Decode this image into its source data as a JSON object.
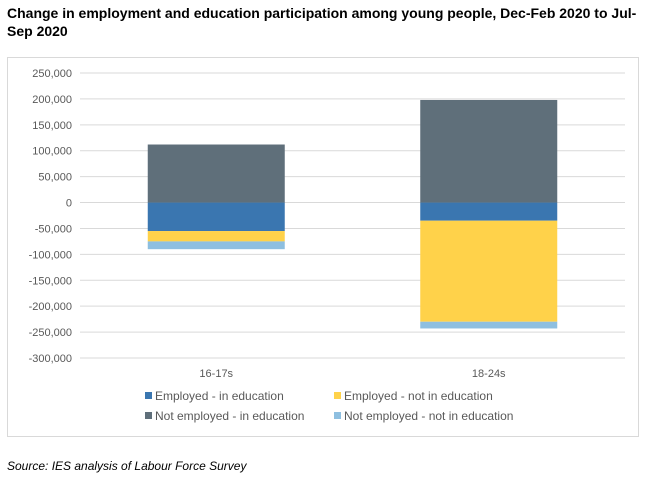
{
  "title": "Change in employment and education participation among young people, Dec-Feb 2020 to Jul-Sep 2020",
  "source": "Source: IES analysis of Labour Force Survey",
  "chart_data": {
    "type": "bar",
    "stacked": true,
    "title": "Change in employment and education participation among young people, Dec-Feb 2020 to Jul-Sep 2020",
    "categories": [
      "16-17s",
      "18-24s"
    ],
    "ylim": [
      -300000,
      250000
    ],
    "yticks": [
      250000,
      200000,
      150000,
      100000,
      50000,
      0,
      -50000,
      -100000,
      -150000,
      -200000,
      -250000,
      -300000
    ],
    "ytick_labels": [
      "250,000",
      "200,000",
      "150,000",
      "100,000",
      "50,000",
      "0",
      "-50,000",
      "-100,000",
      "-150,000",
      "-200,000",
      "-250,000",
      "-300,000"
    ],
    "grid": true,
    "legend_position": "bottom",
    "series": [
      {
        "name": "Employed - in education",
        "color": "#3a76b0",
        "values": [
          -55000,
          -35000
        ]
      },
      {
        "name": "Employed - not in education",
        "color": "#ffd24a",
        "values": [
          -20000,
          -195000
        ]
      },
      {
        "name": "Not employed - in education",
        "color": "#5f6f7a",
        "values": [
          112000,
          198000
        ]
      },
      {
        "name": "Not employed - not in education",
        "color": "#8ebfe0",
        "values": [
          -15000,
          -13000
        ]
      }
    ]
  }
}
